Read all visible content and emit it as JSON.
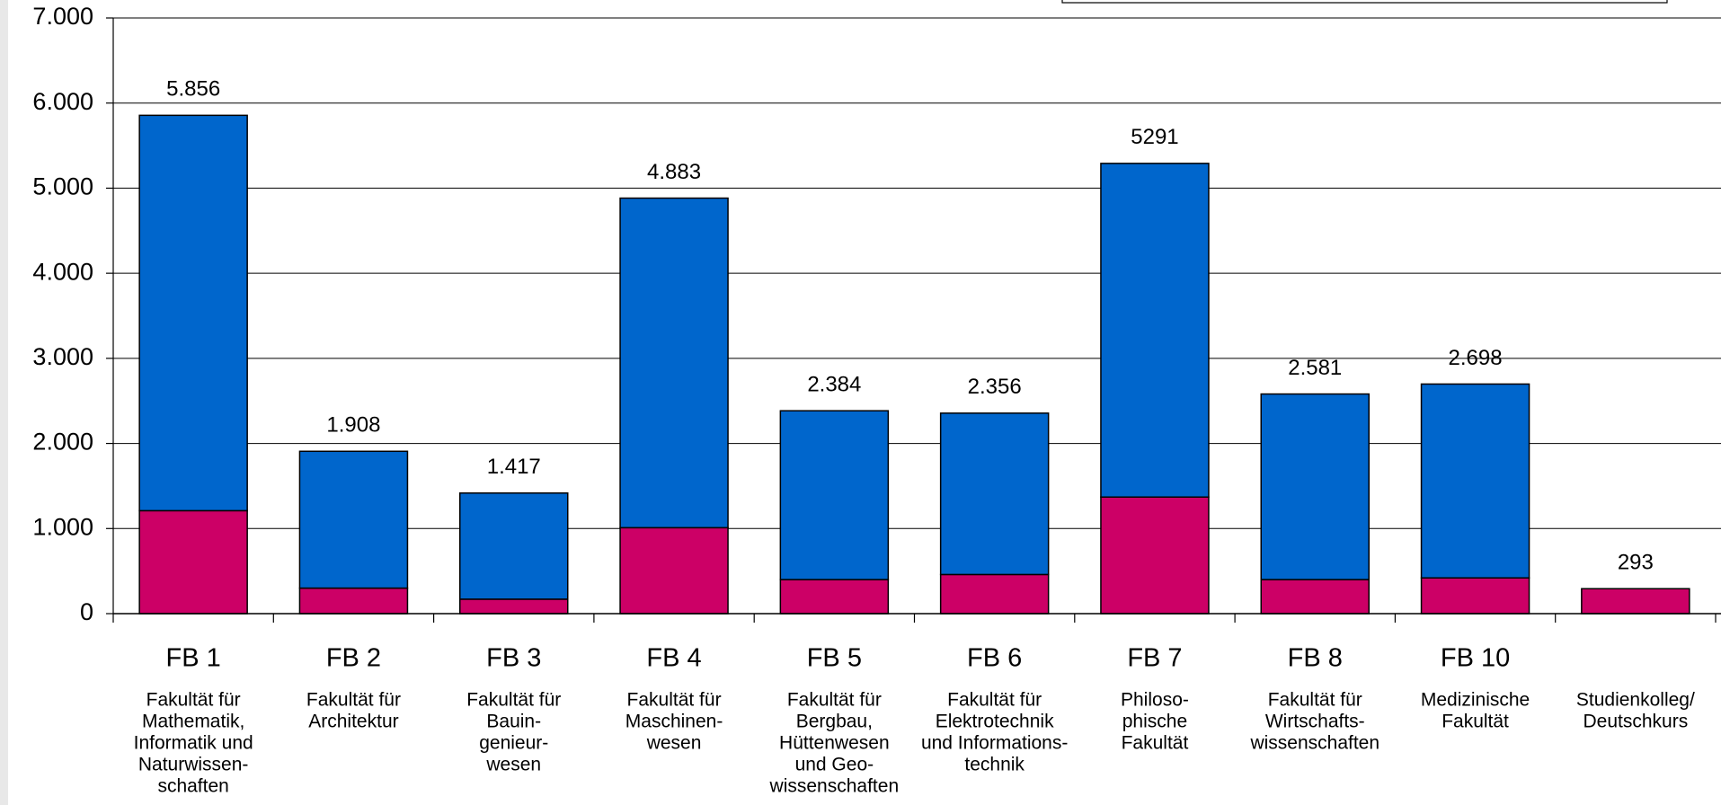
{
  "chart_data": {
    "type": "stacked-bar",
    "categories": [
      "FB 1",
      "FB 2",
      "FB 3",
      "FB 4",
      "FB 5",
      "FB 6",
      "FB 7",
      "FB 8",
      "FB 10",
      null
    ],
    "descriptions": [
      [
        "Fakultät für",
        "Mathematik,",
        "Informatik und",
        "Naturwissen-",
        "schaften"
      ],
      [
        "Fakultät für",
        "Architektur"
      ],
      [
        "Fakultät für",
        "Bauin-",
        "genieur-",
        "wesen"
      ],
      [
        "Fakultät für",
        "Maschinen-",
        "wesen"
      ],
      [
        "Fakultät für",
        "Bergbau,",
        "Hüttenwesen",
        "und Geo-",
        "wissenschaften"
      ],
      [
        "Fakultät für",
        "Elektrotechnik",
        "und Informations-",
        "technik"
      ],
      [
        "Philoso-",
        "phische",
        "Fakultät"
      ],
      [
        "Fakultät für",
        "Wirtschafts-",
        "wissenschaften"
      ],
      [
        "Medizinische",
        "Fakultät"
      ],
      [
        "Studienkolleg/",
        "Deutschkurs"
      ]
    ],
    "series": [
      {
        "color": "#cc0066",
        "values": [
          1210,
          300,
          170,
          1010,
          400,
          460,
          1370,
          400,
          420,
          293
        ]
      },
      {
        "color": "#0066cc",
        "values": [
          4646,
          1608,
          1247,
          3873,
          1984,
          1896,
          3921,
          2181,
          2278,
          null
        ]
      }
    ],
    "totals": {
      "values": [
        5856,
        1908,
        1417,
        4883,
        2384,
        2356,
        5291,
        2581,
        2698,
        293
      ],
      "value_labels": [
        "5.856",
        "1.908",
        "1.417",
        "4.883",
        "2.384",
        "2.356",
        "5291",
        "2.581",
        "2.698",
        "293"
      ]
    },
    "ylim": [
      0,
      7000
    ],
    "yticks": [
      0,
      {
        "value": 1000,
        "label": "1.000"
      },
      {
        "value": 2000,
        "label": "2.000"
      },
      {
        "value": 3000,
        "label": "3.000"
      },
      {
        "value": 4000,
        "label": "4.000"
      },
      {
        "value": 5000,
        "label": "5.000"
      },
      {
        "value": 6000,
        "label": "6.000"
      },
      {
        "value": 7000,
        "label": "7.000"
      }
    ],
    "grid": true
  }
}
